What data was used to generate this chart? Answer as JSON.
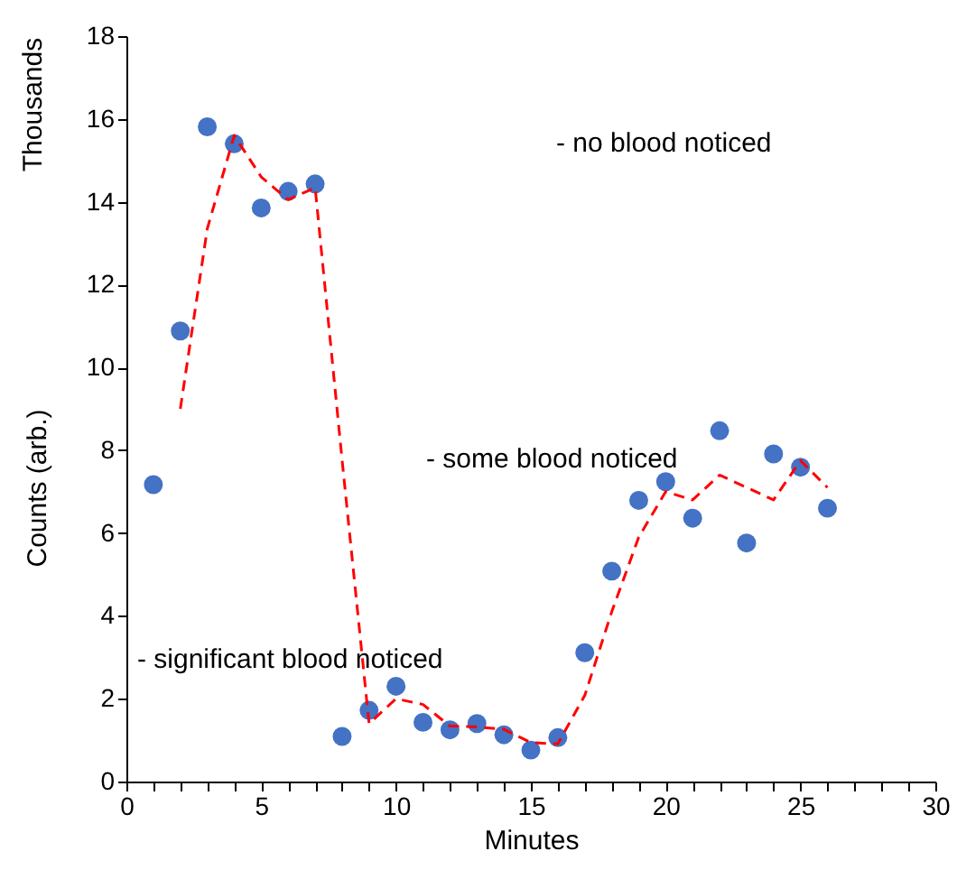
{
  "chart_data": {
    "type": "scatter",
    "xlabel": "Minutes",
    "ylabel": "Counts (arb.)",
    "x": [
      1,
      2,
      3,
      4,
      5,
      6,
      7,
      8,
      9,
      10,
      11,
      12,
      13,
      14,
      15,
      16,
      17,
      18,
      19,
      20,
      21,
      22,
      23,
      24,
      25,
      26
    ],
    "series": [
      {
        "color": "#4472c4",
        "marker": "circle",
        "values": [
          7.17,
          10.88,
          15.81,
          15.4,
          13.85,
          14.25,
          14.43,
          1.09,
          1.72,
          2.3,
          1.43,
          1.25,
          1.4,
          1.13,
          0.76,
          1.06,
          3.11,
          5.08,
          6.79,
          7.24,
          6.36,
          8.47,
          5.76,
          7.91,
          7.59,
          6.6
        ]
      },
      {
        "type": "line",
        "color": "#ff0000",
        "marker": "none",
        "line_style": "dashed",
        "x": [
          2,
          3,
          4,
          5,
          6,
          7,
          8,
          9,
          10,
          11,
          12,
          13,
          14,
          15,
          16,
          17,
          18,
          19,
          20,
          21,
          22,
          23,
          24,
          25,
          26
        ],
        "values": [
          9.0,
          13.35,
          15.6,
          14.6,
          14.05,
          14.34,
          7.76,
          1.4,
          2.0,
          1.86,
          1.34,
          1.32,
          1.26,
          0.94,
          0.91,
          2.08,
          4.1,
          5.9,
          7.0,
          6.8,
          7.4,
          7.1,
          6.8,
          7.75,
          7.1
        ]
      }
    ],
    "xlim": [
      0,
      30
    ],
    "ylim": [
      0,
      18
    ],
    "xticks": [
      0,
      {
        "value": 1,
        "label": null
      },
      {
        "value": 2,
        "label": null
      },
      {
        "value": 3,
        "label": null
      },
      {
        "value": 4,
        "label": null
      },
      5,
      {
        "value": 6,
        "label": null
      },
      {
        "value": 7,
        "label": null
      },
      {
        "value": 8,
        "label": null
      },
      {
        "value": 9,
        "label": null
      },
      10,
      {
        "value": 11,
        "label": null
      },
      {
        "value": 12,
        "label": null
      },
      {
        "value": 13,
        "label": null
      },
      {
        "value": 14,
        "label": null
      },
      15,
      {
        "value": 16,
        "label": null
      },
      {
        "value": 17,
        "label": null
      },
      {
        "value": 18,
        "label": null
      },
      {
        "value": 19,
        "label": null
      },
      20,
      {
        "value": 21,
        "label": null
      },
      {
        "value": 22,
        "label": null
      },
      {
        "value": 23,
        "label": null
      },
      {
        "value": 24,
        "label": null
      },
      25,
      {
        "value": 26,
        "label": null
      },
      {
        "value": 27,
        "label": null
      },
      {
        "value": 28,
        "label": null
      },
      {
        "value": 29,
        "label": null
      },
      30
    ],
    "yticks": [
      0,
      2,
      4,
      6,
      8,
      10,
      12,
      14,
      16,
      18
    ],
    "grid": false,
    "annotations": [
      "- no blood noticed",
      "- some blood noticed",
      "- significant blood noticed",
      "Thousands"
    ]
  }
}
